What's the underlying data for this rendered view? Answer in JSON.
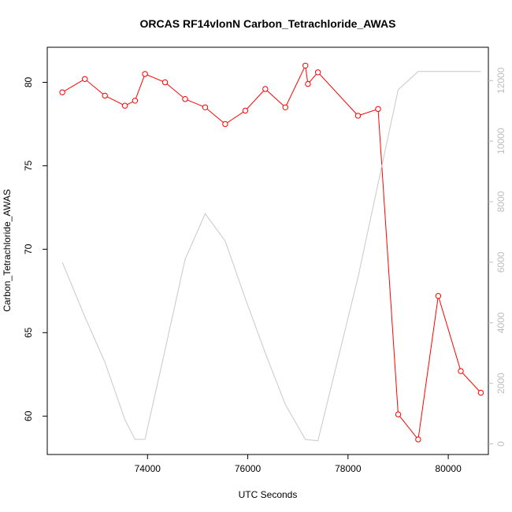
{
  "chart_data": {
    "type": "line",
    "title": "ORCAS RF14vlonN Carbon_Tetrachloride_AWAS",
    "xlabel": "UTC Seconds",
    "ylabel": "Carbon_Tetrachloride_AWAS",
    "xlim": [
      72000,
      80800
    ],
    "ylim": [
      57.7,
      82.1
    ],
    "y2lim": [
      -350,
      13100
    ],
    "x_ticks": [
      74000,
      76000,
      78000,
      80000
    ],
    "y_ticks": [
      60,
      65,
      70,
      75,
      80
    ],
    "y2_ticks": [
      0,
      2000,
      4000,
      6000,
      8000,
      10000,
      12000
    ],
    "colors": {
      "primary": "#ff0000",
      "secondary": "#c8c8c8",
      "right_axis": "#bdbdbd"
    },
    "series": [
      {
        "axis": "left",
        "marker": "open-circle",
        "x": [
          72300,
          72750,
          73150,
          73550,
          73750,
          73950,
          74350,
          74750,
          75150,
          75550,
          75950,
          76350,
          76750,
          77150,
          77200,
          77400,
          78200,
          78600,
          79000,
          79400,
          79800,
          80250,
          80650
        ],
        "y": [
          79.4,
          80.2,
          79.2,
          78.6,
          78.9,
          80.5,
          80.0,
          79.0,
          78.5,
          77.5,
          78.3,
          79.6,
          78.5,
          81.0,
          79.9,
          80.6,
          78.0,
          78.4,
          60.1,
          58.6,
          67.2,
          62.7,
          61.4
        ]
      },
      {
        "axis": "right",
        "marker": "none",
        "x": [
          72300,
          72750,
          73150,
          73550,
          73750,
          73950,
          74350,
          74750,
          75150,
          75550,
          75950,
          76350,
          76750,
          77150,
          77400,
          78200,
          78600,
          79000,
          79400,
          79800,
          80250,
          80650
        ],
        "y": [
          6000,
          4200,
          2700,
          800,
          150,
          150,
          3100,
          6100,
          7600,
          6700,
          4800,
          3000,
          1300,
          150,
          100,
          5500,
          8600,
          11700,
          12300,
          12300,
          12300,
          12300
        ]
      }
    ]
  }
}
